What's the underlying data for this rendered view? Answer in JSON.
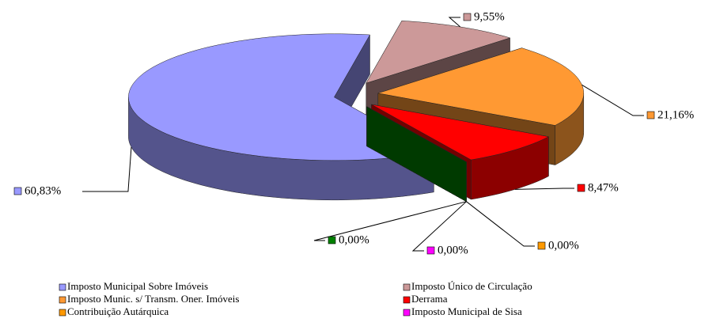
{
  "chart_data": {
    "type": "pie3d",
    "categories": [
      "Imposto Municipal Sobre Imóveis",
      "Imposto Único de Circulação",
      "Imposto Munic. s/ Transm. Oner. Imóveis",
      "Derrama",
      "Contribuição Autárquica",
      "Imposto Municipal de Sisa",
      null
    ],
    "values": [
      60.83,
      9.55,
      21.16,
      8.47,
      0,
      0,
      0
    ],
    "value_labels": [
      "60,83%",
      "9,55%",
      "21,16%",
      "8,47%",
      "0,00%",
      "0,00%",
      "0,00%"
    ],
    "colors": [
      "#9999ff",
      "#cc9999",
      "#ff9933",
      "#ff0000",
      "#ff9900",
      "#ff00ff",
      "#008000"
    ],
    "legend": "bottom"
  }
}
